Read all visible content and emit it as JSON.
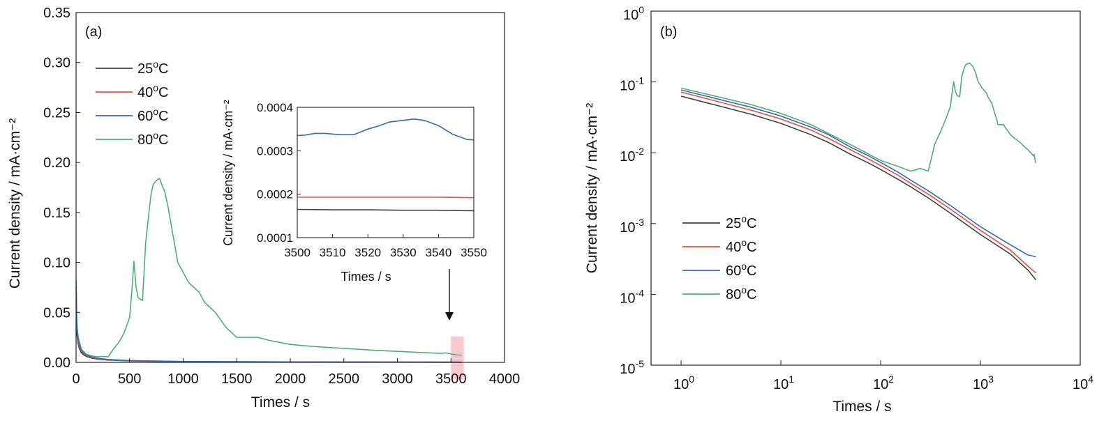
{
  "chart_data": [
    {
      "type": "line",
      "panel_label": "(a)",
      "xlabel": "Times / s",
      "ylabel": "Current density / mA·cm⁻²",
      "xlim": [
        0,
        4000
      ],
      "ylim": [
        0,
        0.35
      ],
      "xticks": [
        "0",
        "500",
        "1000",
        "1500",
        "2000",
        "2500",
        "3000",
        "3500",
        "4000"
      ],
      "yticks": [
        "0.00",
        "0.05",
        "0.10",
        "0.15",
        "0.20",
        "0.25",
        "0.30",
        "0.35"
      ],
      "legend_position": "top-left",
      "highlight_region": {
        "x": [
          3500,
          3620
        ],
        "y": [
          -0.017,
          0.026
        ],
        "color": "#f7c9cc"
      },
      "series": [
        {
          "name": "25°C",
          "color": "#404040",
          "x": [
            1,
            5,
            10,
            20,
            30,
            50,
            75,
            100,
            150,
            200,
            300,
            500,
            1000,
            2000,
            3000,
            3600
          ],
          "y": [
            0.063,
            0.035,
            0.026,
            0.018,
            0.014,
            0.0095,
            0.0072,
            0.0058,
            0.0042,
            0.0033,
            0.0023,
            0.0014,
            0.0007,
            0.00037,
            0.00022,
            0.00016
          ]
        },
        {
          "name": "40°C",
          "color": "#e8503f",
          "x": [
            1,
            5,
            10,
            20,
            30,
            50,
            75,
            100,
            150,
            200,
            300,
            500,
            1000,
            2000,
            3000,
            3600
          ],
          "y": [
            0.072,
            0.04,
            0.03,
            0.021,
            0.016,
            0.011,
            0.0082,
            0.0066,
            0.0048,
            0.0037,
            0.0026,
            0.0016,
            0.0008,
            0.00042,
            0.00025,
            0.0002
          ]
        },
        {
          "name": "60°C",
          "color": "#2f6db5",
          "x": [
            1,
            5,
            10,
            20,
            30,
            50,
            75,
            100,
            150,
            200,
            300,
            500,
            1000,
            2000,
            3000,
            3600
          ],
          "y": [
            0.077,
            0.044,
            0.033,
            0.023,
            0.018,
            0.012,
            0.0091,
            0.0073,
            0.0053,
            0.0041,
            0.0029,
            0.0018,
            0.0009,
            0.0005,
            0.00036,
            0.00034
          ]
        },
        {
          "name": "80°C",
          "color": "#4caf73",
          "x": [
            1,
            5,
            10,
            20,
            50,
            100,
            150,
            200,
            250,
            300,
            350,
            400,
            450,
            500,
            520,
            540,
            560,
            580,
            600,
            620,
            650,
            680,
            700,
            720,
            750,
            780,
            800,
            830,
            860,
            900,
            950,
            1000,
            1050,
            1100,
            1150,
            1200,
            1300,
            1400,
            1450,
            1500,
            1600,
            1700,
            1800,
            1900,
            2000,
            2200,
            2500,
            2800,
            3000,
            3200,
            3400,
            3450,
            3500,
            3550,
            3600
          ],
          "y": [
            0.082,
            0.048,
            0.036,
            0.025,
            0.013,
            0.0078,
            0.0064,
            0.0055,
            0.006,
            0.0055,
            0.0135,
            0.02,
            0.03,
            0.045,
            0.07,
            0.101,
            0.075,
            0.065,
            0.063,
            0.062,
            0.12,
            0.15,
            0.168,
            0.178,
            0.182,
            0.184,
            0.178,
            0.17,
            0.155,
            0.13,
            0.1,
            0.09,
            0.08,
            0.075,
            0.07,
            0.06,
            0.05,
            0.035,
            0.03,
            0.025,
            0.025,
            0.025,
            0.022,
            0.02,
            0.018,
            0.016,
            0.014,
            0.012,
            0.011,
            0.01,
            0.009,
            0.0095,
            0.0085,
            0.0075,
            0.0072
          ]
        }
      ]
    },
    {
      "type": "line",
      "role": "inset",
      "xlabel": "Times / s",
      "ylabel": "Current density / mA·cm⁻²",
      "xlim": [
        3500,
        3550
      ],
      "ylim": [
        0.0001,
        0.0004
      ],
      "xticks": [
        "3500",
        "3510",
        "3520",
        "3530",
        "3540",
        "3550"
      ],
      "yticks": [
        "0.0001",
        "0.0002",
        "0.0003",
        "0.0004"
      ],
      "series": [
        {
          "series_ref": "25°C",
          "color": "#404040",
          "x": [
            3500,
            3510,
            3520,
            3530,
            3540,
            3550
          ],
          "y": [
            0.000165,
            0.000164,
            0.000164,
            0.000163,
            0.000163,
            0.000162
          ]
        },
        {
          "series_ref": "40°C",
          "color": "#e8503f",
          "x": [
            3500,
            3510,
            3520,
            3530,
            3540,
            3550
          ],
          "y": [
            0.000193,
            0.000193,
            0.000193,
            0.000193,
            0.000193,
            0.000192
          ]
        },
        {
          "series_ref": "60°C",
          "color": "#2f6db5",
          "x": [
            3500,
            3502,
            3505,
            3508,
            3512,
            3516,
            3520,
            3523,
            3526,
            3530,
            3533,
            3536,
            3540,
            3544,
            3548,
            3550
          ],
          "y": [
            0.000335,
            0.000336,
            0.00034,
            0.00034,
            0.000337,
            0.000337,
            0.00035,
            0.000357,
            0.000366,
            0.00037,
            0.000373,
            0.00037,
            0.000358,
            0.000338,
            0.000326,
            0.000325
          ]
        }
      ]
    },
    {
      "type": "line",
      "panel_label": "(b)",
      "xlabel": "Times / s",
      "ylabel": "Current density / mA·cm⁻²",
      "xscale": "log",
      "yscale": "log",
      "xlim": [
        0.5,
        10000
      ],
      "ylim": [
        1e-05,
        1
      ],
      "xticks": [
        "10^0",
        "10^1",
        "10^2",
        "10^3",
        "10^4"
      ],
      "yticks": [
        "10^-5",
        "10^-4",
        "10^-3",
        "10^-2",
        "10^-1",
        "10^0"
      ],
      "legend_position": "bottom-left",
      "series": [
        {
          "name": "25°C",
          "series_ref": "25°C",
          "color": "#404040"
        },
        {
          "name": "40°C",
          "series_ref": "40°C",
          "color": "#e8503f"
        },
        {
          "name": "60°C",
          "series_ref": "60°C",
          "color": "#2f6db5"
        },
        {
          "name": "80°C",
          "series_ref": "80°C",
          "color": "#4caf73"
        }
      ]
    }
  ]
}
